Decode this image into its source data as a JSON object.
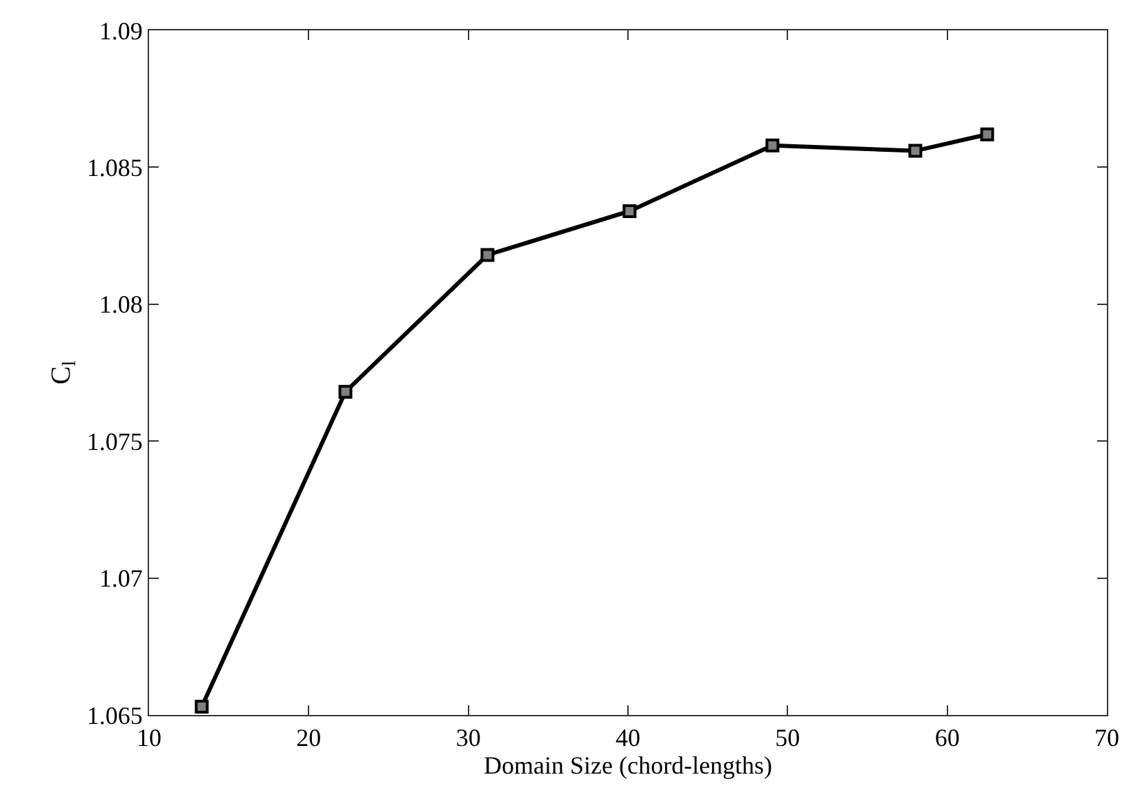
{
  "chart_data": {
    "type": "line",
    "xlabel": "Domain Size (chord-lengths)",
    "ylabel": "C$_{l}$",
    "x": [
      13.3,
      22.3,
      31.2,
      40.1,
      49.05,
      58.0,
      62.5
    ],
    "series": [
      {
        "color": "#000000",
        "values": [
          1.0653,
          1.0768,
          1.0818,
          1.0834,
          1.0858,
          1.0856,
          1.0862
        ]
      }
    ],
    "xlim": [
      10,
      70
    ],
    "xticks": [
      10,
      20,
      30,
      40,
      50,
      60,
      70
    ],
    "ylim": [
      1.065,
      1.09
    ],
    "yticks": [
      1.065,
      1.07,
      1.075,
      1.08,
      1.085,
      1.09
    ],
    "marker": "square",
    "line_style": "solid",
    "legend": false
  }
}
